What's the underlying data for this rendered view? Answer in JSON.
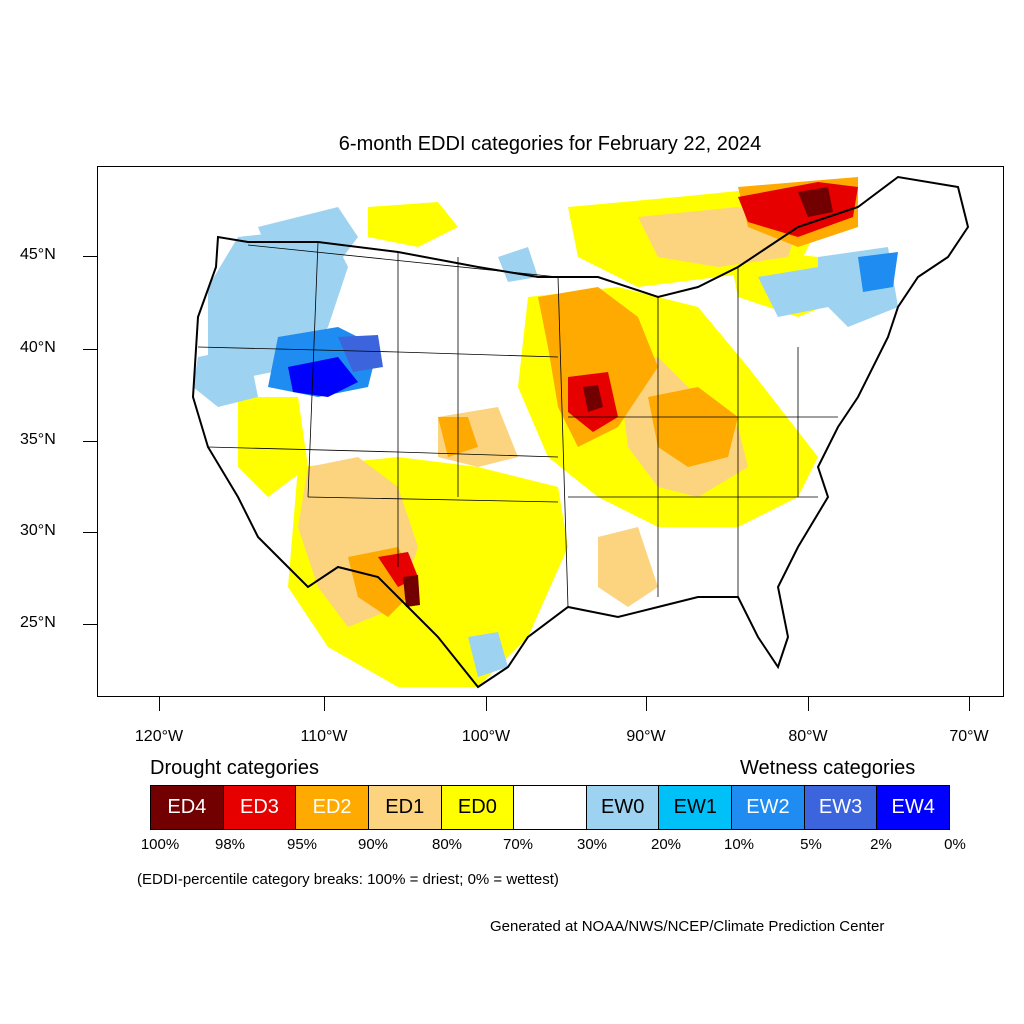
{
  "title": "6-month EDDI categories for February 22, 2024",
  "latitude_labels": [
    "45°N",
    "40°N",
    "35°N",
    "30°N",
    "25°N"
  ],
  "longitude_labels": [
    "120°W",
    "110°W",
    "100°W",
    "90°W",
    "80°W",
    "70°W"
  ],
  "drought_heading": "Drought categories",
  "wetness_heading": "Wetness categories",
  "legend": [
    {
      "label": "ED4",
      "color": "#730000",
      "text_color": "#ffffff"
    },
    {
      "label": "ED3",
      "color": "#e60000",
      "text_color": "#ffffff"
    },
    {
      "label": "ED2",
      "color": "#ffaa00",
      "text_color": "#ffffff"
    },
    {
      "label": "ED1",
      "color": "#fcd37f",
      "text_color": "#000000"
    },
    {
      "label": "ED0",
      "color": "#ffff00",
      "text_color": "#000000"
    },
    {
      "label": "",
      "color": "#ffffff",
      "text_color": "#000000"
    },
    {
      "label": "EW0",
      "color": "#9dd3f0",
      "text_color": "#000000"
    },
    {
      "label": "EW1",
      "color": "#00c0f8",
      "text_color": "#000000"
    },
    {
      "label": "EW2",
      "color": "#1e8cf0",
      "text_color": "#ffffff"
    },
    {
      "label": "EW3",
      "color": "#3c64dc",
      "text_color": "#ffffff"
    },
    {
      "label": "EW4",
      "color": "#0000ff",
      "text_color": "#ffffff"
    }
  ],
  "percentiles": [
    "100%",
    "98%",
    "95%",
    "90%",
    "80%",
    "70%",
    "30%",
    "20%",
    "10%",
    "5%",
    "2%",
    "0%"
  ],
  "note": "(EDDI-percentile category breaks: 100% = driest; 0% = wettest)",
  "credit": "Generated at NOAA/NWS/NCEP/Climate Prediction Center"
}
